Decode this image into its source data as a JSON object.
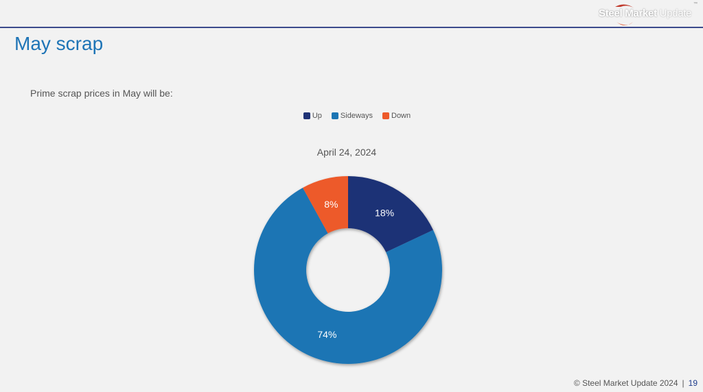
{
  "header": {
    "logo_bold": "Steel Market",
    "logo_light": "Update",
    "logo_tm": "™"
  },
  "slide": {
    "title": "May scrap",
    "subtitle": "Prime scrap prices in May will be:"
  },
  "colors": {
    "up": "#1f3276",
    "sideways": "#1b75b4",
    "down": "#ed5a2a",
    "title": "#1e74b6"
  },
  "chart_data": {
    "type": "pie",
    "title": "April 24, 2024",
    "legend_position": "top",
    "categories": [
      "Up",
      "Sideways",
      "Down"
    ],
    "values": [
      18,
      74,
      8
    ],
    "labels": [
      "18%",
      "74%",
      "8%"
    ],
    "colors": [
      "#1f3276",
      "#1b75b4",
      "#ed5a2a"
    ]
  },
  "footer": {
    "copyright": "© Steel Market Update 2024",
    "separator": "|",
    "page_number": "19"
  }
}
